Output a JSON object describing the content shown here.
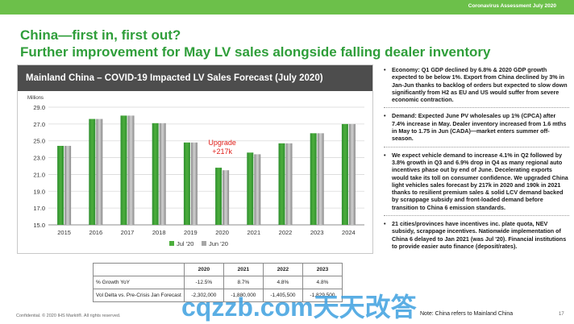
{
  "header": {
    "subtitle": "Coronavirus Assessment July 2020"
  },
  "title": {
    "line1": "China—first in, first out?",
    "line2": "Further improvement for May LV sales alongside falling dealer inventory"
  },
  "colors": {
    "brand_green": "#2f9e3a",
    "bar_bar_green": "#4cae3c",
    "bar_grey": "#a6a6a6",
    "annotation_red": "#e0201b"
  },
  "chart_data": {
    "type": "bar",
    "title": "Mainland China – COVID-19 Impacted LV Sales Forecast (July 2020)",
    "ylabel": "Millions",
    "ylim": [
      15.0,
      29.0
    ],
    "yticks": [
      "15.0",
      "17.0",
      "19.0",
      "21.0",
      "23.0",
      "25.0",
      "27.0",
      "29.0"
    ],
    "categories": [
      "2015",
      "2016",
      "2017",
      "2018",
      "2019",
      "2020",
      "2021",
      "2022",
      "2023",
      "2024"
    ],
    "series": [
      {
        "name": "Jul '20",
        "color": "#4cae3c",
        "values": [
          24.4,
          27.6,
          28.0,
          27.1,
          24.8,
          21.8,
          23.6,
          24.7,
          25.9,
          27.0
        ]
      },
      {
        "name": "Jun '20",
        "color": "#a6a6a6",
        "values": [
          24.4,
          27.6,
          28.0,
          27.1,
          24.8,
          21.5,
          23.4,
          24.7,
          25.9,
          27.0
        ]
      }
    ],
    "annotation": {
      "text_line1": "Upgrade",
      "text_line2": "+217k",
      "category": "2020"
    },
    "grid": true,
    "legend": "bottom"
  },
  "table": {
    "headers": [
      "",
      "2020",
      "2021",
      "2022",
      "2023"
    ],
    "rows": [
      [
        "% Growth YoY",
        "-12.5%",
        "8.7%",
        "4.8%",
        "4.8%"
      ],
      [
        "Vol Delta vs. Pre-Crisis Jan Forecast",
        "-2,302,000",
        "-1,880,000",
        "-1,405,500",
        "-1,829,500"
      ]
    ]
  },
  "bullets": [
    "Economy: Q1 GDP declined by 6.8% & 2020 GDP growth expected to be below 1%. Export from China declined by 3% in Jan-Jun thanks to backlog of orders but expected to slow down significantly from H2 as EU and US would suffer from severe economic contraction.",
    "Demand: Expected June PV wholesales up 1% (CPCA) after 7.4% increase in May. Dealer inventory increased from 1.6 mths in May to 1.75 in Jun (CADA)—market enters summer off-season.",
    "We expect vehicle demand to increase 4.1% in Q2 followed by 3.8% growth in Q3 and 6.9%  drop in Q4 as many regional auto incentives phase out by end of June. Decelerating exports would take its toll on consumer confidence. We upgraded China light vehicles sales forecast by 217k in 2020 and 190k in 2021 thanks to resilient premium sales & solid LCV demand backed by scrappage subsidy and front-loaded demand before transition to China 6 emission standards.",
    "21 cities/provinces have incentives inc. plate quota, NEV subsidy, scrappage incentives. Nationwide implementation of China 6 delayed to Jan 2021 (was Jul '20). Financial institutions to provide easier auto finance (deposit/rates)."
  ],
  "footer": {
    "left": "Confidential. © 2020 IHS Markit®. All rights reserved.",
    "note": "Note: China refers to Mainland China",
    "page": "17"
  },
  "watermark": "cqzzb.com天天改答"
}
